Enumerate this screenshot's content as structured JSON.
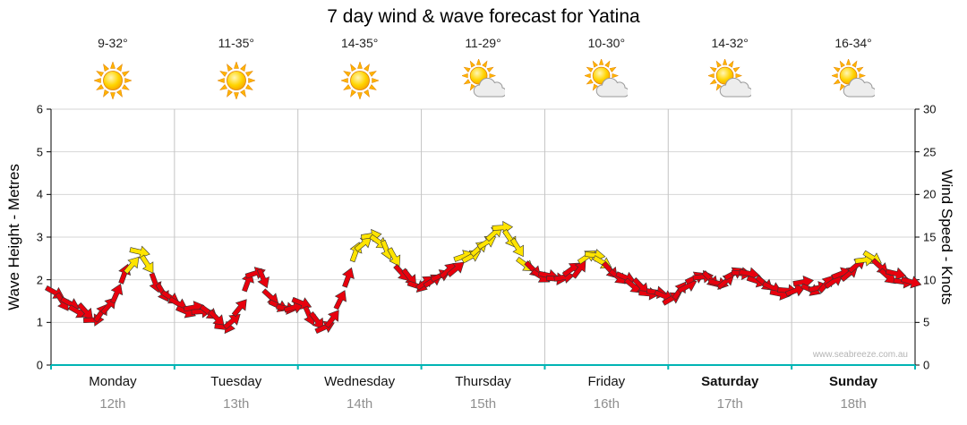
{
  "title": "7 day wind & wave forecast for Yatina",
  "watermark": "www.seabreeze.com.au",
  "axes": {
    "left_label": "Wave Height - Metres",
    "right_label": "Wind Speed - Knots",
    "left_ticks": [
      0,
      1,
      2,
      3,
      4,
      5,
      6
    ],
    "right_ticks": [
      0,
      5,
      10,
      15,
      20,
      25,
      30
    ]
  },
  "days": [
    {
      "name": "Monday",
      "date": "12th",
      "temp": "9-32°",
      "icon": "sunny",
      "bold": false
    },
    {
      "name": "Tuesday",
      "date": "13th",
      "temp": "11-35°",
      "icon": "sunny",
      "bold": false
    },
    {
      "name": "Wednesday",
      "date": "14th",
      "temp": "14-35°",
      "icon": "sunny",
      "bold": false
    },
    {
      "name": "Thursday",
      "date": "15th",
      "temp": "11-29°",
      "icon": "partly-cloudy",
      "bold": false
    },
    {
      "name": "Friday",
      "date": "16th",
      "temp": "10-30°",
      "icon": "partly-cloudy",
      "bold": false
    },
    {
      "name": "Saturday",
      "date": "17th",
      "temp": "14-32°",
      "icon": "partly-cloudy",
      "bold": true
    },
    {
      "name": "Sunday",
      "date": "18th",
      "temp": "16-34°",
      "icon": "partly-cloudy",
      "bold": true
    }
  ],
  "colors": {
    "arrow_low": "#e8000d",
    "arrow_high": "#ffe400",
    "arrow_outline": "#333333",
    "bottom_axis": "#00b4b4",
    "grid_horizontal": "#d6d6d6",
    "grid_vertical": "#c4c4c4",
    "axis_line": "#000000"
  },
  "chart_data": {
    "type": "wind-arrows",
    "description": "Wind speed time series drawn as direction arrows; red below threshold, yellow at/above",
    "title": "7 day wind & wave forecast for Yatina",
    "ylabel_left": "Wave Height - Metres",
    "ylabel_right": "Wind Speed - Knots",
    "ylim_left": [
      0,
      6
    ],
    "ylim_right": [
      0,
      30
    ],
    "categories": [
      "Monday 12th",
      "Tuesday 13th",
      "Wednesday 14th",
      "Thursday 15th",
      "Friday 16th",
      "Saturday 17th",
      "Sunday 18th"
    ],
    "points_per_day": 16,
    "threshold_knots": 12,
    "knots": [
      8.5,
      7.5,
      7,
      6.5,
      6,
      5.5,
      6,
      7,
      8.5,
      10.5,
      12,
      13,
      12,
      9.5,
      8.5,
      8,
      7,
      6.5,
      6.5,
      6.5,
      6,
      5.5,
      4.5,
      5,
      7,
      9.5,
      11,
      10,
      8,
      7,
      6.5,
      7,
      7,
      6,
      5,
      4.5,
      5.5,
      7.5,
      10.5,
      13,
      14.5,
      15,
      14.5,
      13.5,
      12.5,
      11,
      10,
      9.5,
      9.5,
      10,
      10.5,
      11,
      11.5,
      12.5,
      13,
      13.5,
      14.5,
      15.5,
      16,
      15,
      13.5,
      12,
      11,
      10.5,
      10.5,
      10,
      10.5,
      11,
      11.5,
      12.5,
      13,
      12,
      11,
      10.5,
      10,
      9.5,
      9,
      8.5,
      8.5,
      8,
      8,
      8.5,
      9.5,
      10,
      10.5,
      10,
      9.5,
      10,
      10.5,
      11,
      10.5,
      10,
      9.5,
      9,
      8.5,
      8.5,
      9,
      9.5,
      9,
      9,
      9.5,
      10,
      10.5,
      11,
      11.5,
      12.5,
      12.5,
      11.5,
      10.5,
      10.5,
      10,
      9.5
    ]
  }
}
